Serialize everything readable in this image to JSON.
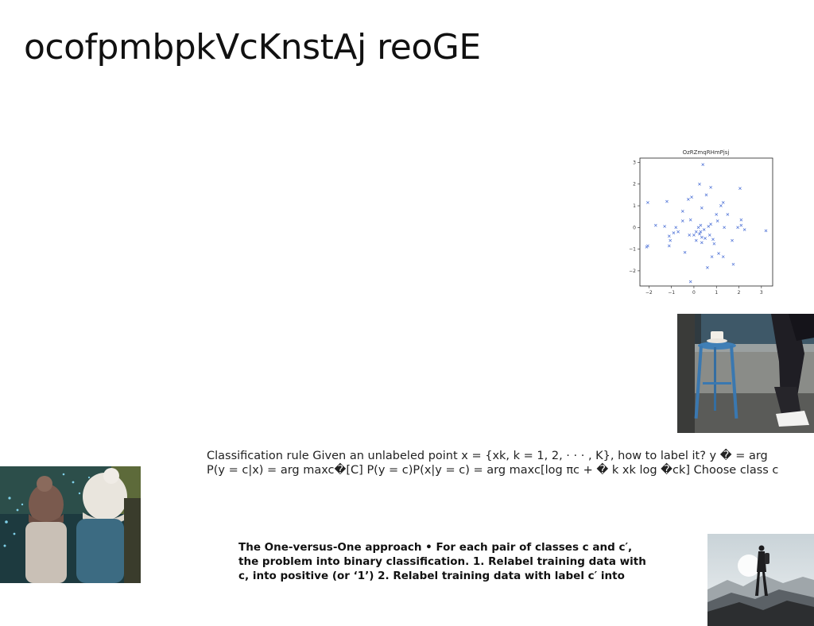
{
  "page": {
    "title": "ocofpmbpkVcKnstAj reoGE"
  },
  "paragraph": {
    "lines": [
      "Classification rule Given an unlabeled point x = {xk, k = 1, 2, · · · , K}, how to label it? y � = arg",
      "P(y = c|x) = arg maxc�[C] P(y = c)P(x|y = c) = arg maxc[log πc + � k xk log �ck] Choose class c"
    ]
  },
  "bold_paragraph": {
    "lines": [
      "The One-versus-One approach • For each pair of classes c and c′,",
      "the problem into binary classification. 1. Relabel training data with",
      "c, into positive (or ‘1’) 2. Relabel training data with label c′ into"
    ]
  },
  "images": {
    "cafe": "blue stool with coffee cup",
    "hats": "two people in knit hats",
    "mountain": "hiker on mountain"
  },
  "chart_data": {
    "type": "scatter",
    "title": "OzRZmqRHmPjsj",
    "xlabel": "",
    "ylabel": "",
    "xlim": [
      -2.4,
      3.5
    ],
    "ylim": [
      -2.7,
      3.2
    ],
    "xticks": [
      "-2",
      "-1",
      "0",
      "1",
      "2",
      "3"
    ],
    "yticks": [
      "-2",
      "-1",
      "0",
      "1",
      "2",
      "3"
    ],
    "marker": "x",
    "color": "#4a6fd6",
    "points": [
      [
        -2.1,
        -0.9
      ],
      [
        -2.05,
        -0.85
      ],
      [
        -2.05,
        1.15
      ],
      [
        -1.7,
        0.1
      ],
      [
        -1.3,
        0.05
      ],
      [
        -1.2,
        1.2
      ],
      [
        -1.1,
        -0.4
      ],
      [
        -1.05,
        -0.6
      ],
      [
        -1.1,
        -0.85
      ],
      [
        -0.9,
        -0.25
      ],
      [
        -0.8,
        0.0
      ],
      [
        -0.7,
        -0.2
      ],
      [
        -0.5,
        0.75
      ],
      [
        -0.5,
        0.3
      ],
      [
        -0.4,
        -1.15
      ],
      [
        -0.25,
        1.3
      ],
      [
        -0.15,
        0.35
      ],
      [
        -0.1,
        1.4
      ],
      [
        -0.2,
        -0.35
      ],
      [
        -0.15,
        -2.5
      ],
      [
        0.0,
        -0.35
      ],
      [
        0.1,
        -0.2
      ],
      [
        0.1,
        -0.6
      ],
      [
        0.2,
        0.0
      ],
      [
        0.25,
        2.0
      ],
      [
        0.25,
        -0.3
      ],
      [
        0.3,
        -0.2
      ],
      [
        0.3,
        0.1
      ],
      [
        0.35,
        0.9
      ],
      [
        0.35,
        -0.45
      ],
      [
        0.35,
        -0.7
      ],
      [
        0.4,
        2.9
      ],
      [
        0.45,
        -0.1
      ],
      [
        0.5,
        -0.5
      ],
      [
        0.55,
        1.5
      ],
      [
        0.6,
        -1.85
      ],
      [
        0.65,
        0.05
      ],
      [
        0.7,
        -0.35
      ],
      [
        0.75,
        1.85
      ],
      [
        0.75,
        0.15
      ],
      [
        0.8,
        -1.35
      ],
      [
        0.85,
        -0.55
      ],
      [
        0.9,
        -0.75
      ],
      [
        1.0,
        0.6
      ],
      [
        1.05,
        0.3
      ],
      [
        1.1,
        -1.2
      ],
      [
        1.2,
        1.0
      ],
      [
        1.3,
        1.15
      ],
      [
        1.3,
        -1.35
      ],
      [
        1.35,
        0.0
      ],
      [
        1.5,
        0.6
      ],
      [
        1.7,
        -0.6
      ],
      [
        1.75,
        -1.7
      ],
      [
        1.95,
        0.0
      ],
      [
        2.05,
        1.8
      ],
      [
        2.1,
        0.35
      ],
      [
        2.1,
        0.1
      ],
      [
        2.25,
        -0.1
      ],
      [
        3.2,
        -0.15
      ]
    ]
  }
}
